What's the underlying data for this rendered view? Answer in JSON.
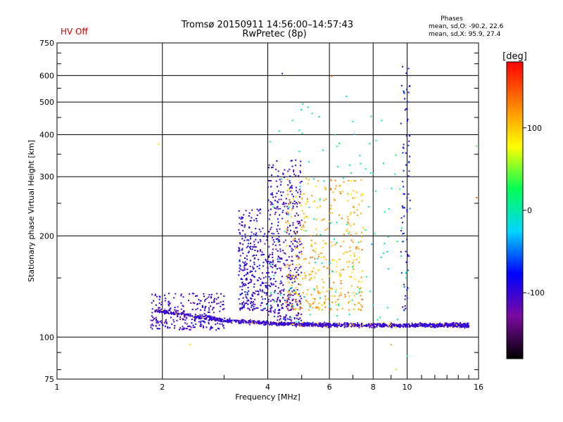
{
  "header": {
    "hv_status": "HV Off",
    "title": "Tromsø 20150911 14:56:00–14:57:43",
    "subtitle": "RwPretec (8p)"
  },
  "phases_box": {
    "title": "Phases",
    "line_o": "mean, sd,O: -90.2, 22.6",
    "line_x": "mean, sd,X: 95.9, 27.4"
  },
  "chart_data": {
    "type": "scatter",
    "xlabel": "Frequency [MHz]",
    "ylabel": "Stationary phase Virtual Height [km]",
    "x_scale": "log",
    "y_scale": "log",
    "xlim": [
      1,
      16
    ],
    "ylim": [
      75,
      750
    ],
    "x_ticks": [
      1,
      2,
      4,
      6,
      8,
      10,
      16
    ],
    "x_tick_labels": [
      "1",
      "2",
      "4",
      "6",
      "8",
      "10",
      "16"
    ],
    "y_ticks": [
      75,
      100,
      200,
      300,
      400,
      500,
      600,
      750
    ],
    "y_tick_labels": [
      "75",
      "100",
      "200",
      "300",
      "400",
      "500",
      "600",
      "750"
    ],
    "grid": true,
    "colorbar": {
      "label": "[deg]",
      "range": [
        -180,
        180
      ],
      "ticks": [
        100,
        0,
        -100
      ],
      "tick_labels": [
        "100",
        "0",
        "-100"
      ],
      "stops": [
        "#000000",
        "#7a0aa0",
        "#0000ff",
        "#00d4ff",
        "#00ff55",
        "#ffff00",
        "#ff8000",
        "#ff0000"
      ]
    },
    "series": [
      {
        "kind": "trace",
        "x": [
          1.9,
          2.3,
          2.7,
          3.0,
          3.5,
          4.0,
          4.5,
          5.0,
          5.5,
          6.0,
          7.0,
          8.0,
          9.0,
          10.0,
          11.0,
          12.0,
          13.0,
          14.0,
          15.0
        ],
        "y": [
          120,
          117,
          114,
          112,
          111,
          110,
          109.5,
          109,
          109,
          108.5,
          108.5,
          108.5,
          108.5,
          108.5,
          108.5,
          108.5,
          108.5,
          108.5,
          108
        ],
        "phase_deg": -100,
        "spread": 0.02,
        "count": 1200
      },
      {
        "kind": "cloud",
        "x": [
          1.85,
          3.0
        ],
        "y": [
          105,
          135
        ],
        "phase_deg": -100,
        "count": 260
      },
      {
        "kind": "cloud",
        "x": [
          3.3,
          4.0
        ],
        "y": [
          120,
          240
        ],
        "phase_deg": -95,
        "count": 300
      },
      {
        "kind": "cloud",
        "x": [
          4.0,
          5.0
        ],
        "y": [
          112,
          340
        ],
        "phase_deg": -100,
        "count": 450
      },
      {
        "kind": "cloud",
        "x": [
          4.5,
          7.5
        ],
        "y": [
          120,
          300
        ],
        "phase_deg": 110,
        "count": 380
      },
      {
        "kind": "cloud",
        "x": [
          4.0,
          10.0
        ],
        "y": [
          110,
          500
        ],
        "phase_deg": 0,
        "count": 120
      },
      {
        "kind": "cloud",
        "x": [
          9.6,
          10.2
        ],
        "y": [
          120,
          640
        ],
        "phase_deg": -80,
        "count": 80
      },
      {
        "kind": "points",
        "x": [
          1.95,
          4.4,
          6.1,
          6.7,
          15.8,
          15.8,
          9.3,
          9.0,
          10.0,
          2.4
        ],
        "y": [
          375,
          608,
          597,
          520,
          370,
          260,
          80,
          95,
          88,
          95
        ],
        "phase_deg": [
          90,
          -100,
          140,
          -20,
          40,
          150,
          60,
          120,
          10,
          90
        ]
      }
    ]
  }
}
